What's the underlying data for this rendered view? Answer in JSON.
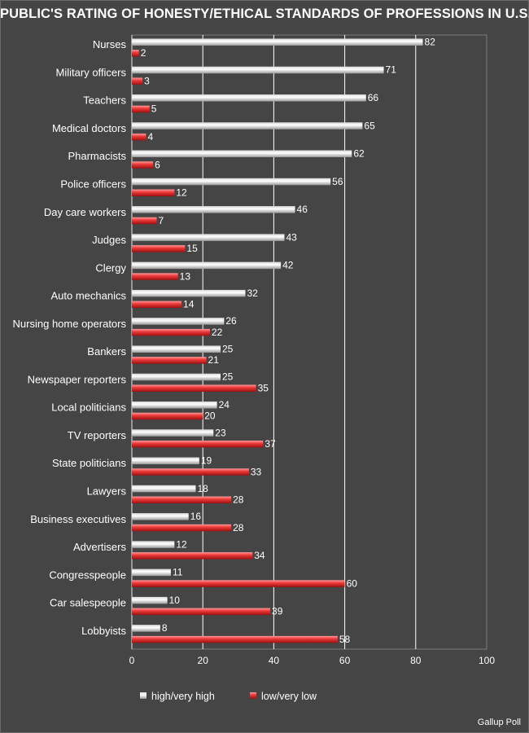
{
  "chart_data": {
    "type": "bar",
    "orientation": "horizontal",
    "title": "PUBLIC'S RATING OF HONESTY/ETHICAL STANDARDS OF PROFESSIONS IN U.S.",
    "categories": [
      "Nurses",
      "Military officers",
      "Teachers",
      "Medical doctors",
      "Pharmacists",
      "Police officers",
      "Day care workers",
      "Judges",
      "Clergy",
      "Auto mechanics",
      "Nursing home operators",
      "Bankers",
      "Newspaper reporters",
      "Local politicians",
      "TV reporters",
      "State politicians",
      "Lawyers",
      "Business executives",
      "Advertisers",
      "Congresspeople",
      "Car salespeople",
      "Lobbyists"
    ],
    "series": [
      {
        "name": "high/very high",
        "color": "#ffffff",
        "values": [
          82,
          71,
          66,
          65,
          62,
          56,
          46,
          43,
          42,
          32,
          26,
          25,
          25,
          24,
          23,
          19,
          18,
          16,
          12,
          11,
          10,
          8
        ]
      },
      {
        "name": "low/very low",
        "color": "#e8262a",
        "values": [
          2,
          3,
          5,
          4,
          6,
          12,
          7,
          15,
          13,
          14,
          22,
          21,
          35,
          20,
          37,
          33,
          28,
          28,
          34,
          60,
          39,
          58
        ]
      }
    ],
    "xlim": [
      0,
      100
    ],
    "xticks": [
      0,
      20,
      40,
      60,
      80,
      100
    ],
    "grid": true,
    "legend": "bottom",
    "data_labels": true
  },
  "credit": "Gallup Poll"
}
